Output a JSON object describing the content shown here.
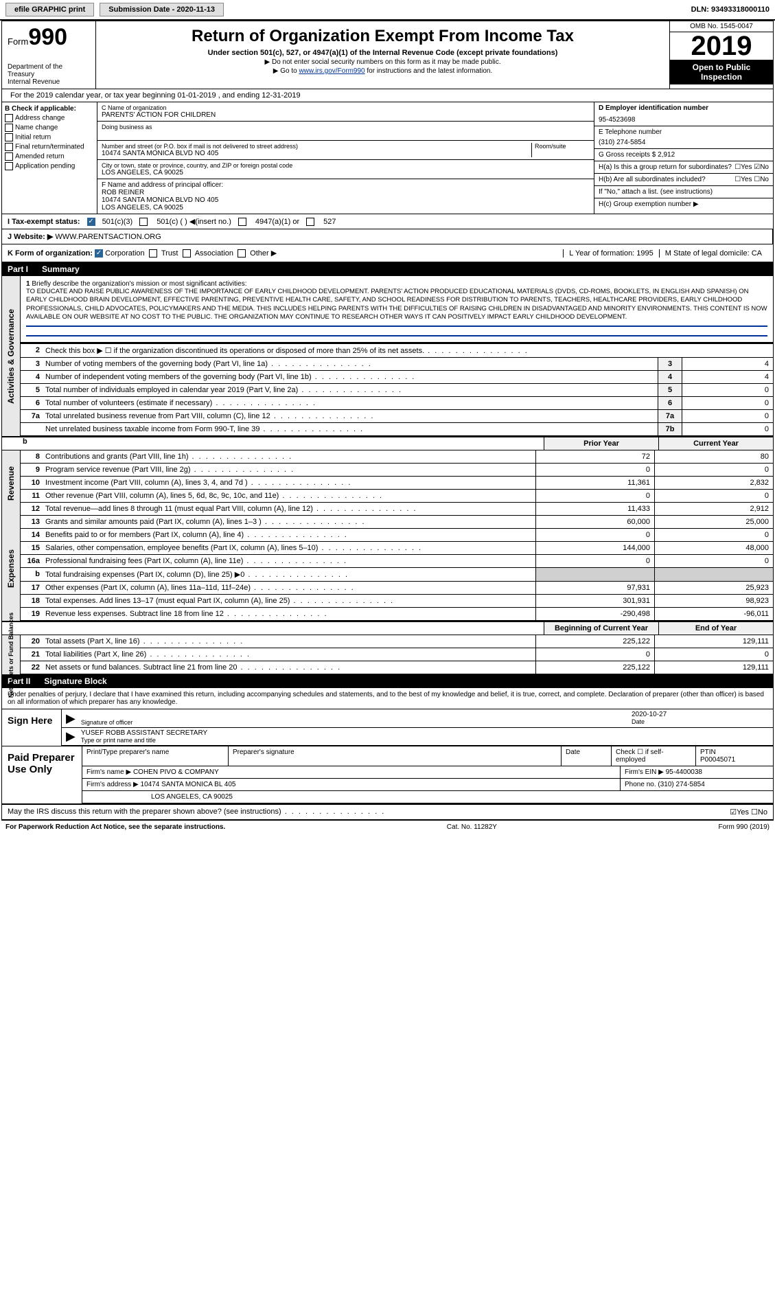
{
  "top": {
    "efile": "efile GRAPHIC print",
    "submission_label": "Submission Date - 2020-11-13",
    "dln": "DLN: 93493318000110"
  },
  "header": {
    "form_prefix": "Form",
    "form_number": "990",
    "dept": "Department of the Treasury\nInternal Revenue",
    "title": "Return of Organization Exempt From Income Tax",
    "subtitle": "Under section 501(c), 527, or 4947(a)(1) of the Internal Revenue Code (except private foundations)",
    "note1": "▶ Do not enter social security numbers on this form as it may be made public.",
    "note2_pre": "▶ Go to ",
    "note2_link": "www.irs.gov/Form990",
    "note2_post": " for instructions and the latest information.",
    "omb": "OMB No. 1545-0047",
    "year": "2019",
    "inspect": "Open to Public Inspection"
  },
  "cal_year": "For the 2019 calendar year, or tax year beginning 01-01-2019   , and ending 12-31-2019",
  "secB": {
    "label": "B Check if applicable:",
    "items": [
      "Address change",
      "Name change",
      "Initial return",
      "Final return/terminated",
      "Amended return",
      "Application pending"
    ]
  },
  "secC": {
    "name_lbl": "C Name of organization",
    "name": "PARENTS' ACTION FOR CHILDREN",
    "dba_lbl": "Doing business as",
    "addr_lbl": "Number and street (or P.O. box if mail is not delivered to street address)",
    "addr": "10474 SANTA MONICA BLVD NO 405",
    "room_lbl": "Room/suite",
    "city_lbl": "City or town, state or province, country, and ZIP or foreign postal code",
    "city": "LOS ANGELES, CA  90025",
    "officer_lbl": "F  Name and address of principal officer:",
    "officer_name": "ROB REINER",
    "officer_addr": "10474 SANTA MONICA BLVD NO 405",
    "officer_city": "LOS ANGELES, CA  90025"
  },
  "secD": {
    "ein_lbl": "D Employer identification number",
    "ein": "95-4523698",
    "phone_lbl": "E Telephone number",
    "phone": "(310) 274-5854",
    "gross_lbl": "G Gross receipts $ 2,912",
    "ha": "H(a)  Is this a group return for subordinates?",
    "ha_ans": "☐Yes ☑No",
    "hb": "H(b)  Are all subordinates included?",
    "hb_ans": "☐Yes ☐No",
    "hb_note": "If \"No,\" attach a list. (see instructions)",
    "hc": "H(c)  Group exemption number ▶"
  },
  "taxI": {
    "label": "I   Tax-exempt status:",
    "opt1": "501(c)(3)",
    "opt2": "501(c) (  ) ◀(insert no.)",
    "opt3": "4947(a)(1) or",
    "opt4": "527"
  },
  "webJ": {
    "label": "J   Website: ▶",
    "url": "WWW.PARENTSACTION.ORG"
  },
  "rowK": {
    "label": "K Form of organization:",
    "opts": [
      "Corporation",
      "Trust",
      "Association",
      "Other ▶"
    ],
    "l_label": "L Year of formation: 1995",
    "m_label": "M State of legal domicile: CA"
  },
  "part1": {
    "num": "Part I",
    "title": "Summary"
  },
  "mission": {
    "n": "1",
    "lbl": "Briefly describe the organization's mission or most significant activities:",
    "txt": "TO EDUCATE AND RAISE PUBLIC AWARENESS OF THE IMPORTANCE OF EARLY CHILDHOOD DEVELOPMENT. PARENTS' ACTION PRODUCED EDUCATIONAL MATERIALS (DVDS, CD-ROMS, BOOKLETS, IN ENGLISH AND SPANISH) ON EARLY CHILDHOOD BRAIN DEVELOPMENT, EFFECTIVE PARENTING, PREVENTIVE HEALTH CARE, SAFETY, AND SCHOOL READINESS FOR DISTRIBUTION TO PARENTS, TEACHERS, HEALTHCARE PROVIDERS, EARLY CHILDHOOD PROFESSIONALS, CHILD ADVOCATES, POLICYMAKERS AND THE MEDIA. THIS INCLUDES HELPING PARENTS WITH THE DIFFICULTIES OF RAISING CHILDREN IN DISADVANTAGED AND MINORITY ENVIRONMENTS. THIS CONTENT IS NOW AVAILABLE ON OUR WEBSITE AT NO COST TO THE PUBLIC. THE ORGANIZATION MAY CONTINUE TO RESEARCH OTHER WAYS IT CAN POSITIVELY IMPACT EARLY CHILDHOOD DEVELOPMENT."
  },
  "gov_rows": [
    {
      "n": "2",
      "desc": "Check this box ▶ ☐ if the organization discontinued its operations or disposed of more than 25% of its net assets.",
      "box": "",
      "val": ""
    },
    {
      "n": "3",
      "desc": "Number of voting members of the governing body (Part VI, line 1a)",
      "box": "3",
      "val": "4"
    },
    {
      "n": "4",
      "desc": "Number of independent voting members of the governing body (Part VI, line 1b)",
      "box": "4",
      "val": "4"
    },
    {
      "n": "5",
      "desc": "Total number of individuals employed in calendar year 2019 (Part V, line 2a)",
      "box": "5",
      "val": "0"
    },
    {
      "n": "6",
      "desc": "Total number of volunteers (estimate if necessary)",
      "box": "6",
      "val": "0"
    },
    {
      "n": "7a",
      "desc": "Total unrelated business revenue from Part VIII, column (C), line 12",
      "box": "7a",
      "val": "0"
    },
    {
      "n": "",
      "desc": "Net unrelated business taxable income from Form 990-T, line 39",
      "box": "7b",
      "val": "0"
    }
  ],
  "col_hdrs": {
    "prior": "Prior Year",
    "current": "Current Year"
  },
  "rev_rows": [
    {
      "n": "8",
      "desc": "Contributions and grants (Part VIII, line 1h)",
      "c1": "72",
      "c2": "80"
    },
    {
      "n": "9",
      "desc": "Program service revenue (Part VIII, line 2g)",
      "c1": "0",
      "c2": "0"
    },
    {
      "n": "10",
      "desc": "Investment income (Part VIII, column (A), lines 3, 4, and 7d )",
      "c1": "11,361",
      "c2": "2,832"
    },
    {
      "n": "11",
      "desc": "Other revenue (Part VIII, column (A), lines 5, 6d, 8c, 9c, 10c, and 11e)",
      "c1": "0",
      "c2": "0"
    },
    {
      "n": "12",
      "desc": "Total revenue—add lines 8 through 11 (must equal Part VIII, column (A), line 12)",
      "c1": "11,433",
      "c2": "2,912"
    }
  ],
  "exp_rows": [
    {
      "n": "13",
      "desc": "Grants and similar amounts paid (Part IX, column (A), lines 1–3 )",
      "c1": "60,000",
      "c2": "25,000"
    },
    {
      "n": "14",
      "desc": "Benefits paid to or for members (Part IX, column (A), line 4)",
      "c1": "0",
      "c2": "0"
    },
    {
      "n": "15",
      "desc": "Salaries, other compensation, employee benefits (Part IX, column (A), lines 5–10)",
      "c1": "144,000",
      "c2": "48,000"
    },
    {
      "n": "16a",
      "desc": "Professional fundraising fees (Part IX, column (A), line 11e)",
      "c1": "0",
      "c2": "0"
    },
    {
      "n": "b",
      "desc": "Total fundraising expenses (Part IX, column (D), line 25) ▶0",
      "c1": "",
      "c2": "",
      "shade": true
    },
    {
      "n": "17",
      "desc": "Other expenses (Part IX, column (A), lines 11a–11d, 11f–24e)",
      "c1": "97,931",
      "c2": "25,923"
    },
    {
      "n": "18",
      "desc": "Total expenses. Add lines 13–17 (must equal Part IX, column (A), line 25)",
      "c1": "301,931",
      "c2": "98,923"
    },
    {
      "n": "19",
      "desc": "Revenue less expenses. Subtract line 18 from line 12",
      "c1": "-290,498",
      "c2": "-96,011"
    }
  ],
  "net_hdrs": {
    "begin": "Beginning of Current Year",
    "end": "End of Year"
  },
  "net_rows": [
    {
      "n": "20",
      "desc": "Total assets (Part X, line 16)",
      "c1": "225,122",
      "c2": "129,111"
    },
    {
      "n": "21",
      "desc": "Total liabilities (Part X, line 26)",
      "c1": "0",
      "c2": "0"
    },
    {
      "n": "22",
      "desc": "Net assets or fund balances. Subtract line 21 from line 20",
      "c1": "225,122",
      "c2": "129,111"
    }
  ],
  "part2": {
    "num": "Part II",
    "title": "Signature Block"
  },
  "sig_intro": "Under penalties of perjury, I declare that I have examined this return, including accompanying schedules and statements, and to the best of my knowledge and belief, it is true, correct, and complete. Declaration of preparer (other than officer) is based on all information of which preparer has any knowledge.",
  "sig": {
    "here": "Sign Here",
    "officer_lbl": "Signature of officer",
    "date": "2020-10-27",
    "date_lbl": "Date",
    "name": "YUSEF ROBB  ASSISTANT SECRETARY",
    "name_lbl": "Type or print name and title"
  },
  "prep": {
    "title": "Paid Preparer Use Only",
    "r1": {
      "c1": "Print/Type preparer's name",
      "c2": "Preparer's signature",
      "c3": "Date",
      "c4": "Check ☐ if self-employed",
      "c5_lbl": "PTIN",
      "c5": "P00045071"
    },
    "r2": {
      "lbl": "Firm's name   ▶",
      "val": "COHEN PIVO & COMPANY",
      "ein_lbl": "Firm's EIN ▶",
      "ein": "95-4400038"
    },
    "r3": {
      "lbl": "Firm's address ▶",
      "val": "10474 SANTA MONICA BL 405",
      "phone_lbl": "Phone no.",
      "phone": "(310) 274-5854"
    },
    "r3b": "LOS ANGELES, CA  90025"
  },
  "discuss": {
    "q": "May the IRS discuss this return with the preparer shown above? (see instructions)",
    "ans": "☑Yes ☐No"
  },
  "footer": {
    "l": "For Paperwork Reduction Act Notice, see the separate instructions.",
    "c": "Cat. No. 11282Y",
    "r": "Form 990 (2019)"
  },
  "vtabs": {
    "gov": "Activities & Governance",
    "rev": "Revenue",
    "exp": "Expenses",
    "net": "Net Assets or Fund Balances"
  }
}
